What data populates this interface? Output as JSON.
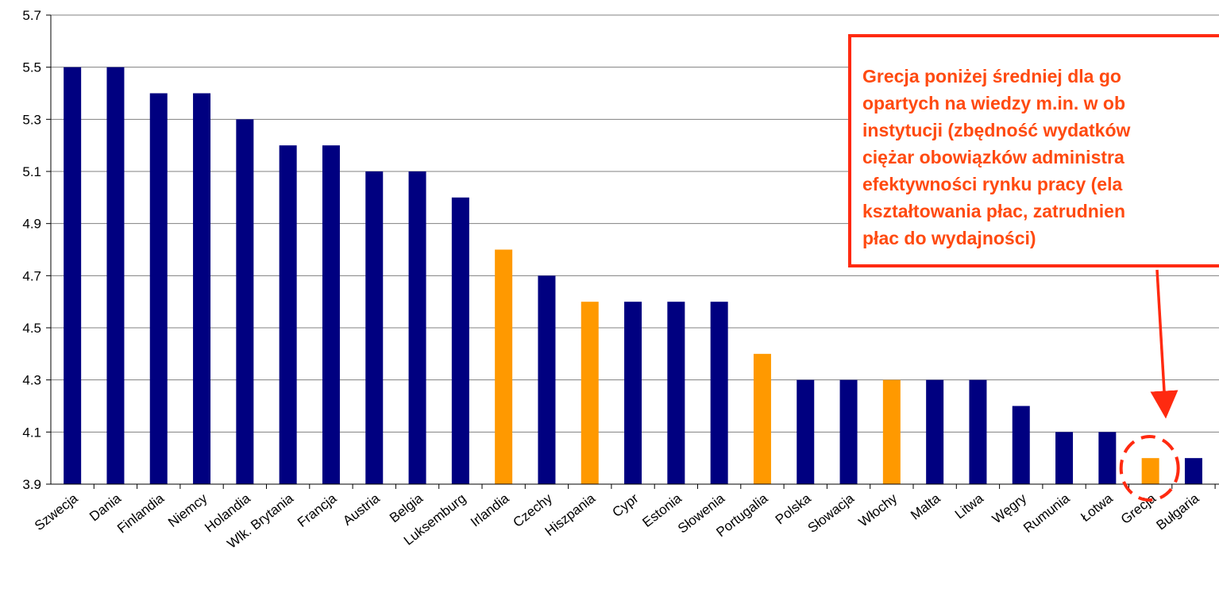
{
  "chart_data": {
    "type": "bar",
    "categories": [
      "Szwecja",
      "Dania",
      "Finlandia",
      "Niemcy",
      "Holandia",
      "Wlk. Brytania",
      "Francja",
      "Austria",
      "Belgia",
      "Luksemburg",
      "Irlandia",
      "Czechy",
      "Hiszpania",
      "Cypr",
      "Estonia",
      "Słowenia",
      "Portugalia",
      "Polska",
      "Słowacja",
      "Włochy",
      "Malta",
      "Litwa",
      "Węgry",
      "Rumunia",
      "Łotwa",
      "Grecja",
      "Bułgaria"
    ],
    "values": [
      5.5,
      5.5,
      5.4,
      5.4,
      5.3,
      5.2,
      5.2,
      5.1,
      5.1,
      5.0,
      4.8,
      4.7,
      4.6,
      4.6,
      4.6,
      4.6,
      4.4,
      4.3,
      4.3,
      4.3,
      4.3,
      4.3,
      4.2,
      4.1,
      4.1,
      4.0,
      4.0
    ],
    "highlighted": [
      "Irlandia",
      "Hiszpania",
      "Portugalia",
      "Włochy",
      "Grecja"
    ],
    "colors": {
      "default": "#000080",
      "highlight": "#ff9900",
      "annotation": "#ff2a10"
    },
    "ylim": [
      3.9,
      5.7
    ],
    "yticks": [
      "5.7",
      "5.5",
      "5.3",
      "5.1",
      "4.9",
      "4.7",
      "4.5",
      "4.3",
      "4.1",
      "3.9"
    ],
    "grid": true,
    "annotation": {
      "lines": [
        "Grecja poniżej średniej dla go",
        "opartych na wiedzy m.in. w ob",
        "instytucji (zbędność wydatków",
        "ciężar obowiązków administra",
        "efektywności rynku pracy (ela",
        "kształtowania płac, zatrudnien",
        "płac do wydajności)"
      ],
      "target": "Grecja"
    }
  }
}
